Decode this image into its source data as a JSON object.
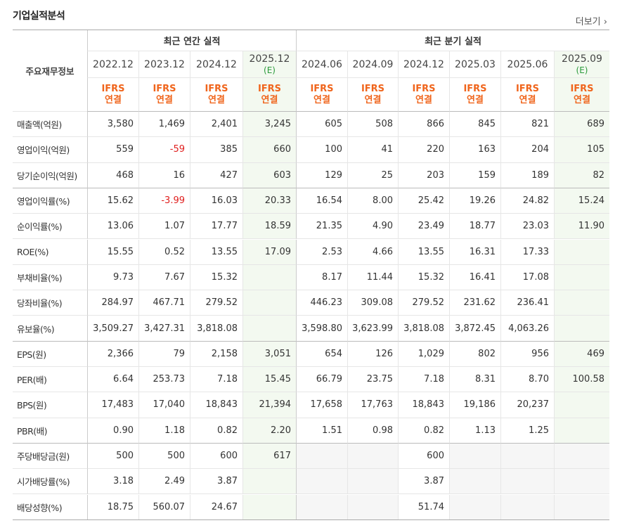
{
  "title": "기업실적분석",
  "more": "더보기",
  "header": {
    "label": "주요재무정보",
    "groups": [
      "최근 연간 실적",
      "최근 분기 실적"
    ],
    "columns": [
      {
        "period": "2022.12",
        "type": "IFRS",
        "consolidation": "연결"
      },
      {
        "period": "2023.12",
        "type": "IFRS",
        "consolidation": "연결"
      },
      {
        "period": "2024.12",
        "type": "IFRS",
        "consolidation": "연결"
      },
      {
        "period": "2025.12",
        "estimate": "(E)",
        "type": "IFRS",
        "consolidation": "연결"
      },
      {
        "period": "2024.06",
        "type": "IFRS",
        "consolidation": "연결"
      },
      {
        "period": "2024.09",
        "type": "IFRS",
        "consolidation": "연결"
      },
      {
        "period": "2024.12",
        "type": "IFRS",
        "consolidation": "연결"
      },
      {
        "period": "2025.03",
        "type": "IFRS",
        "consolidation": "연결"
      },
      {
        "period": "2025.06",
        "type": "IFRS",
        "consolidation": "연결"
      },
      {
        "period": "2025.09",
        "estimate": "(E)",
        "type": "IFRS",
        "consolidation": "연결"
      }
    ]
  },
  "sections": [
    {
      "rows": [
        {
          "label": "매출액(억원)",
          "cells": [
            "3,580",
            "1,469",
            "2,401",
            "3,245",
            "605",
            "508",
            "866",
            "845",
            "821",
            "689"
          ]
        },
        {
          "label": "영업이익(억원)",
          "cells": [
            "559",
            "-59",
            "385",
            "660",
            "100",
            "41",
            "220",
            "163",
            "204",
            "105"
          ]
        },
        {
          "label": "당기순이익(억원)",
          "cells": [
            "468",
            "16",
            "427",
            "603",
            "129",
            "25",
            "203",
            "159",
            "189",
            "82"
          ]
        }
      ]
    },
    {
      "rows": [
        {
          "label": "영업이익률(%)",
          "cells": [
            "15.62",
            "-3.99",
            "16.03",
            "20.33",
            "16.54",
            "8.00",
            "25.42",
            "19.26",
            "24.82",
            "15.24"
          ]
        },
        {
          "label": "순이익률(%)",
          "cells": [
            "13.06",
            "1.07",
            "17.77",
            "18.59",
            "21.35",
            "4.90",
            "23.49",
            "18.77",
            "23.03",
            "11.90"
          ]
        },
        {
          "label": "ROE(%)",
          "cells": [
            "15.55",
            "0.52",
            "13.55",
            "17.09",
            "2.53",
            "4.66",
            "13.55",
            "16.31",
            "17.33",
            null
          ]
        },
        {
          "label": "부채비율(%)",
          "cells": [
            "9.73",
            "7.67",
            "15.32",
            null,
            "8.17",
            "11.44",
            "15.32",
            "16.41",
            "17.08",
            null
          ]
        },
        {
          "label": "당좌비율(%)",
          "cells": [
            "284.97",
            "467.71",
            "279.52",
            null,
            "446.23",
            "309.08",
            "279.52",
            "231.62",
            "236.41",
            null
          ]
        },
        {
          "label": "유보율(%)",
          "cells": [
            "3,509.27",
            "3,427.31",
            "3,818.08",
            null,
            "3,598.80",
            "3,623.99",
            "3,818.08",
            "3,872.45",
            "4,063.26",
            null
          ]
        }
      ]
    },
    {
      "rows": [
        {
          "label": "EPS(원)",
          "cells": [
            "2,366",
            "79",
            "2,158",
            "3,051",
            "654",
            "126",
            "1,029",
            "802",
            "956",
            "469"
          ]
        },
        {
          "label": "PER(배)",
          "cells": [
            "6.64",
            "253.73",
            "7.18",
            "15.45",
            "66.79",
            "23.75",
            "7.18",
            "8.31",
            "8.70",
            "100.58"
          ]
        },
        {
          "label": "BPS(원)",
          "cells": [
            "17,483",
            "17,040",
            "18,843",
            "21,394",
            "17,658",
            "17,763",
            "18,843",
            "19,186",
            "20,237",
            null
          ]
        },
        {
          "label": "PBR(배)",
          "cells": [
            "0.90",
            "1.18",
            "0.82",
            "2.20",
            "1.51",
            "0.98",
            "0.82",
            "1.13",
            "1.25",
            null
          ]
        }
      ]
    },
    {
      "rows": [
        {
          "label": "주당배당금(원)",
          "cells": [
            "500",
            "500",
            "600",
            "617",
            null,
            null,
            "600",
            null,
            null,
            null
          ]
        },
        {
          "label": "시가배당률(%)",
          "cells": [
            "3.18",
            "2.49",
            "3.87",
            null,
            null,
            null,
            "3.87",
            null,
            null,
            null
          ]
        },
        {
          "label": "배당성향(%)",
          "cells": [
            "18.75",
            "560.07",
            "24.67",
            null,
            null,
            null,
            "51.74",
            null,
            null,
            null
          ]
        }
      ]
    }
  ]
}
